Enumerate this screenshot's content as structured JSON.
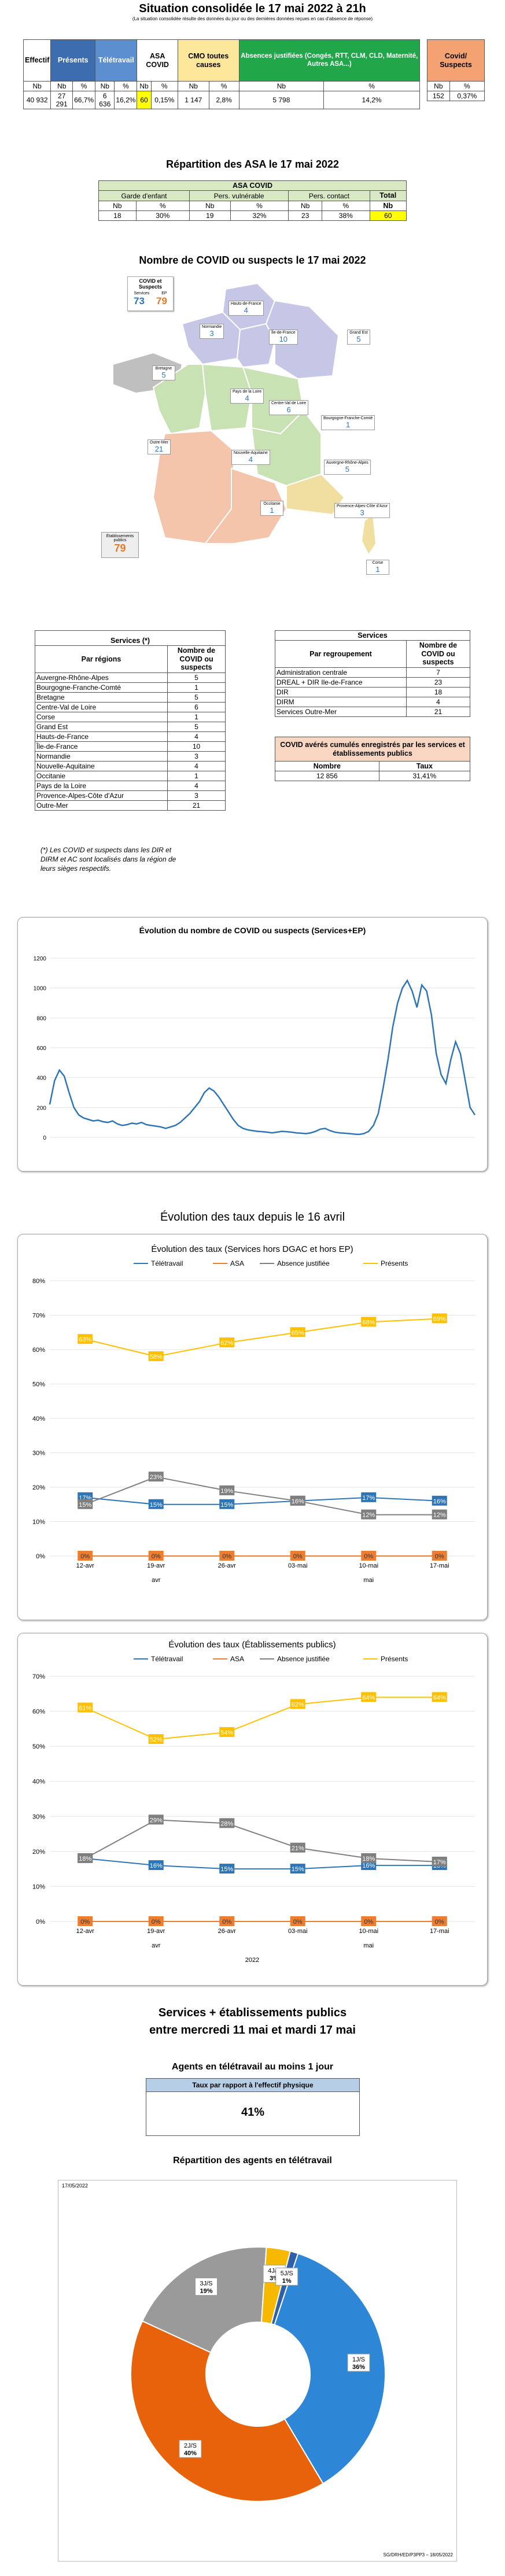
{
  "title": "Situation consolidée le 17 mai 2022 à 21h",
  "subtitle": "(La situation consolidée résulte des données du jour ou des dernières données reçues en cas d'absence de réponse)",
  "summary": {
    "headers": [
      "Effectif",
      "Présents",
      "Télétravail",
      "ASA COVID",
      "CMO toutes causes",
      "Absences justifiées (Congés, RTT, CLM, CLD, Maternité, Autres ASA...)",
      "Covid/ Suspects"
    ],
    "sub": [
      "Nb",
      "Nb",
      "%",
      "Nb",
      "%",
      "Nb",
      "%",
      "Nb",
      "%",
      "Nb",
      "%",
      "Nb",
      "%"
    ],
    "values": [
      "40 932",
      "27 291",
      "66,7%",
      "6 636",
      "16,2%",
      "60",
      "0,15%",
      "1 147",
      "2,8%",
      "5 798",
      "14,2%",
      "152",
      "0,37%"
    ]
  },
  "asa": {
    "title": "Répartition des ASA le 17 mai 2022",
    "group": "ASA COVID",
    "cols": [
      "Garde d'enfant",
      "Pers. vulnérable",
      "Pers. contact",
      "Total"
    ],
    "sub": [
      "Nb",
      "%",
      "Nb",
      "%",
      "Nb",
      "%",
      "Nb"
    ],
    "values": [
      "18",
      "30%",
      "19",
      "32%",
      "23",
      "38%",
      "60"
    ]
  },
  "map": {
    "title": "Nombre de COVID ou suspects le 17 mai 2022",
    "legend_title": "COVID et Suspects",
    "services_label": "Services",
    "ep_label": "EP",
    "services": "73",
    "ep": "79",
    "regions": [
      {
        "name": "Hauts-de-France",
        "v": "4"
      },
      {
        "name": "Normandie",
        "v": "3"
      },
      {
        "name": "Île-de-France",
        "v": "10"
      },
      {
        "name": "Grand Est",
        "v": "5"
      },
      {
        "name": "Bretagne",
        "v": "5"
      },
      {
        "name": "Pays de la Loire",
        "v": "4"
      },
      {
        "name": "Centre-Val de Loire",
        "v": "6"
      },
      {
        "name": "Bourgogne-Franche-Comté",
        "v": "1"
      },
      {
        "name": "Nouvelle-Aquitaine",
        "v": "4"
      },
      {
        "name": "Auvergne-Rhône-Alpes",
        "v": "5"
      },
      {
        "name": "Occitanie",
        "v": "1"
      },
      {
        "name": "Provence-Alpes-Côte d'Azur",
        "v": "3"
      },
      {
        "name": "Corse",
        "v": "1"
      },
      {
        "name": "Outre-Mer",
        "v": "21"
      }
    ],
    "ep_box_label": "Établissements publics",
    "ep_box_value": "79"
  },
  "services_table": {
    "title": "Services (*)",
    "col1": "Par régions",
    "col2": "Nombre de COVID ou suspects",
    "rows": [
      [
        "Auvergne-Rhône-Alpes",
        "5"
      ],
      [
        "Bourgogne-Franche-Comté",
        "1"
      ],
      [
        "Bretagne",
        "5"
      ],
      [
        "Centre-Val de Loire",
        "6"
      ],
      [
        "Corse",
        "1"
      ],
      [
        "Grand Est",
        "5"
      ],
      [
        "Hauts-de-France",
        "4"
      ],
      [
        "Île-de-France",
        "10"
      ],
      [
        "Normandie",
        "3"
      ],
      [
        "Nouvelle-Aquitaine",
        "4"
      ],
      [
        "Occitanie",
        "1"
      ],
      [
        "Pays de la Loire",
        "4"
      ],
      [
        "Provence-Alpes-Côte d'Azur",
        "3"
      ],
      [
        "Outre-Mer",
        "21"
      ]
    ],
    "note": "(*) Les COVID et suspects dans les DIR et DIRM et AC sont localisés dans la région de leurs sièges respectifs."
  },
  "regroup_table": {
    "title": "Services",
    "col1": "Par regroupement",
    "col2": "Nombre de COVID ou suspects",
    "rows": [
      [
        "Administration centrale",
        "7"
      ],
      [
        "DREAL + DIR Ile-de-France",
        "23"
      ],
      [
        "DIR",
        "18"
      ],
      [
        "DIRM",
        "4"
      ],
      [
        "Services Outre-Mer",
        "21"
      ]
    ]
  },
  "cumul": {
    "title": "COVID avérés cumulés enregistrés par les services et établissements publics",
    "col1": "Nombre",
    "col2": "Taux",
    "v1": "12 856",
    "v2": "31,41%"
  },
  "evol_title": "Évolution du nombre de COVID ou suspects (Services+EP)",
  "taux_title": "Évolution des taux depuis le 16 avril",
  "chart_data": [
    {
      "type": "line",
      "title": "Évolution du nombre de COVID ou suspects (Services+EP)",
      "ylim": [
        0,
        1200
      ],
      "yticks": [
        0,
        200,
        400,
        600,
        800,
        1000,
        1200
      ],
      "values": [
        220,
        380,
        450,
        410,
        300,
        200,
        150,
        130,
        120,
        110,
        115,
        105,
        100,
        110,
        90,
        80,
        85,
        95,
        90,
        100,
        85,
        80,
        75,
        70,
        60,
        70,
        80,
        100,
        130,
        160,
        200,
        240,
        300,
        330,
        310,
        270,
        220,
        170,
        120,
        80,
        60,
        50,
        45,
        40,
        38,
        35,
        30,
        35,
        40,
        38,
        35,
        30,
        28,
        25,
        30,
        40,
        55,
        60,
        45,
        35,
        30,
        28,
        25,
        22,
        20,
        25,
        40,
        80,
        160,
        330,
        520,
        740,
        900,
        1000,
        1050,
        980,
        870,
        1020,
        980,
        820,
        560,
        420,
        360,
        520,
        640,
        560,
        380,
        200,
        150
      ]
    },
    {
      "type": "line",
      "title": "Évolution des taux (Services hors DGAC et hors EP)",
      "categories": [
        "12-avr",
        "19-avr",
        "26-avr",
        "03-mai",
        "10-mai",
        "17-mai"
      ],
      "group_labels": [
        "avr",
        "mai"
      ],
      "ylim": [
        0,
        80
      ],
      "series": [
        {
          "name": "Télétravail",
          "values": [
            17,
            15,
            15,
            16,
            17,
            16
          ],
          "color": "#2e75b6"
        },
        {
          "name": "ASA",
          "values": [
            0,
            0,
            0,
            0,
            0,
            0
          ],
          "color": "#ed7d31"
        },
        {
          "name": "Absence justifiée",
          "values": [
            15,
            23,
            19,
            16,
            12,
            12
          ],
          "color": "#7f7f7f"
        },
        {
          "name": "Présents",
          "values": [
            63,
            58,
            62,
            65,
            68,
            69
          ],
          "color": "#ffc000"
        }
      ]
    },
    {
      "type": "line",
      "title": "Évolution des taux (Établissements publics)",
      "categories": [
        "12-avr",
        "19-avr",
        "26-avr",
        "03-mai",
        "10-mai",
        "17-mai"
      ],
      "group_labels": [
        "avr",
        "mai"
      ],
      "year": "2022",
      "ylim": [
        0,
        70
      ],
      "series": [
        {
          "name": "Télétravail",
          "values": [
            18,
            16,
            15,
            15,
            16,
            16
          ],
          "color": "#2e75b6"
        },
        {
          "name": "ASA",
          "values": [
            0,
            0,
            0,
            0,
            0,
            0
          ],
          "color": "#ed7d31"
        },
        {
          "name": "Absence justifiée",
          "values": [
            18,
            29,
            28,
            21,
            18,
            17
          ],
          "color": "#7f7f7f"
        },
        {
          "name": "Présents",
          "values": [
            61,
            52,
            54,
            62,
            64,
            64
          ],
          "color": "#ffc000"
        }
      ]
    },
    {
      "type": "pie",
      "title": "Répartition des agents en télétravail",
      "categories": [
        "1J/S",
        "2J/S",
        "3J/S",
        "4J/S",
        "5J/S"
      ],
      "values": [
        36,
        40,
        19,
        3,
        1
      ],
      "colors": [
        "#2e86d6",
        "#e8620c",
        "#9a9a9a",
        "#f6b800",
        "#2f5fa8"
      ]
    }
  ],
  "period": {
    "title1": "Services + établissements publics",
    "title2": "entre mercredi 11 mai et mardi 17 mai",
    "agents_title": "Agents en télétravail au moins 1 jour",
    "rate_label": "Taux par rapport à l'effectif physique",
    "rate": "41%",
    "repart_title": "Répartition des agents en télétravail",
    "date": "17/05/2022",
    "footer": "SG/DRH/ED/P3PP3 – 18/05/2022"
  }
}
